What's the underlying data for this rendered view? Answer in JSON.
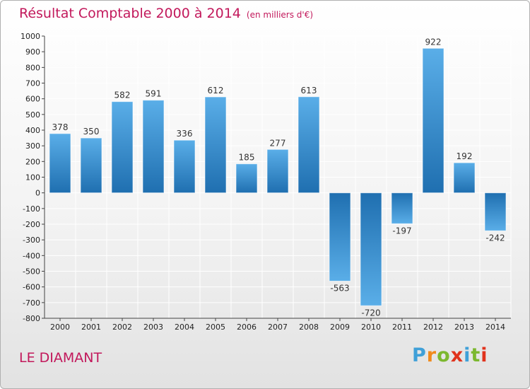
{
  "title": "Résultat Comptable 2000 à 2014",
  "unit_label": "(en milliers d'€)",
  "commune": "LE DIAMANT",
  "logo": {
    "text": "Proxiti",
    "letters": [
      "P",
      "r",
      "o",
      "x",
      "i",
      "t",
      "i"
    ],
    "colors": [
      "#3fa0d8",
      "#f08a1c",
      "#7cb82f",
      "#e0321c",
      "#3fa0d8",
      "#7cb82f",
      "#e0321c"
    ]
  },
  "colors": {
    "bar_light": "#5aaee8",
    "bar_dark": "#1f6fb0",
    "title": "#c2185b",
    "grid": "#ffffff"
  },
  "chart_data": {
    "type": "bar",
    "title": "Résultat Comptable 2000 à 2014",
    "subtitle": "(en milliers d'€)",
    "xlabel": "",
    "ylabel": "",
    "categories": [
      "2000",
      "2001",
      "2002",
      "2003",
      "2004",
      "2005",
      "2006",
      "2007",
      "2008",
      "2009",
      "2010",
      "2011",
      "2012",
      "2013",
      "2014"
    ],
    "values": [
      378,
      350,
      582,
      591,
      336,
      612,
      185,
      277,
      613,
      -563,
      -720,
      -197,
      922,
      192,
      -242
    ],
    "ylim": [
      -800,
      1000
    ],
    "yticks": [
      1000,
      900,
      800,
      700,
      600,
      500,
      400,
      300,
      200,
      100,
      0,
      -100,
      -200,
      -300,
      -400,
      -500,
      -600,
      -700,
      -800
    ],
    "grid": true
  }
}
